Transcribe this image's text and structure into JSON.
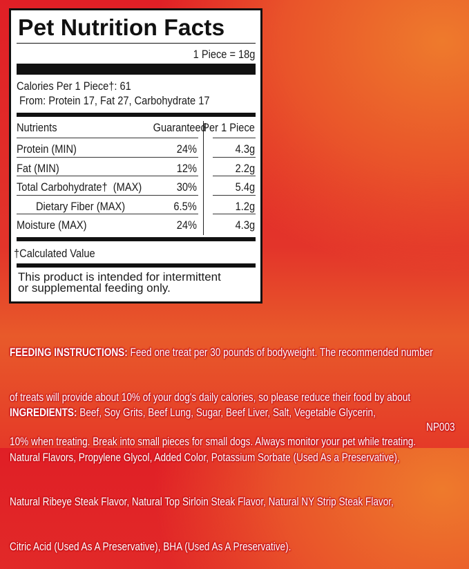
{
  "label": {
    "title": "Pet Nutrition Facts",
    "serving": "1 Piece = 18g",
    "calories": "Calories Per 1 Piece†: 61",
    "calories_from": "From: Protein 17, Fat 27, Carbohydrate 17",
    "headers": {
      "nutrient": "Nutrients",
      "guaranteed": "Guaranteed",
      "per_piece": "Per 1 Piece"
    },
    "rows": [
      {
        "nutrient": "Protein (MIN)",
        "guaranteed": "24%",
        "per_piece": "4.3g"
      },
      {
        "nutrient": "Fat (MIN)",
        "guaranteed": "12%",
        "per_piece": "2.2g"
      },
      {
        "nutrient": "Total Carbohydrate†  (MAX)",
        "guaranteed": "30%",
        "per_piece": "5.4g"
      },
      {
        "nutrient": "Dietary Fiber (MAX)",
        "guaranteed": "6.5%",
        "per_piece": "1.2g"
      },
      {
        "nutrient": "Moisture (MAX)",
        "guaranteed": "24%",
        "per_piece": "4.3g"
      }
    ],
    "footnote": "†Calculated Value",
    "disclaimer": [
      "This product is intended for intermittent",
      "or supplemental feeding only."
    ]
  },
  "feeding": {
    "heading": "FEEDING INSTRUCTIONS:",
    "lines": [
      " Feed one treat per 30 pounds of bodyweight. The recommended number",
      "of treats will provide about 10% of your dog's daily calories, so please reduce their food by about",
      "10% when treating. Break into small pieces for small dogs. Always monitor your pet while treating."
    ]
  },
  "ingredients": {
    "heading": "INGREDIENTS:",
    "lines": [
      " Beef, Soy Grits, Beef Lung, Sugar, Beef Liver, Salt, Vegetable Glycerin,",
      "Natural Flavors, Propylene Glycol, Added Color, Potassium Sorbate (Used As a Preservative),",
      "Natural Ribeye Steak Flavor, Natural Top Sirloin Steak Flavor, Natural NY Strip Steak Flavor,",
      "Citric Acid (Used As A Preservative), BHA (Used As A Preservative)."
    ],
    "code": "NP003"
  }
}
